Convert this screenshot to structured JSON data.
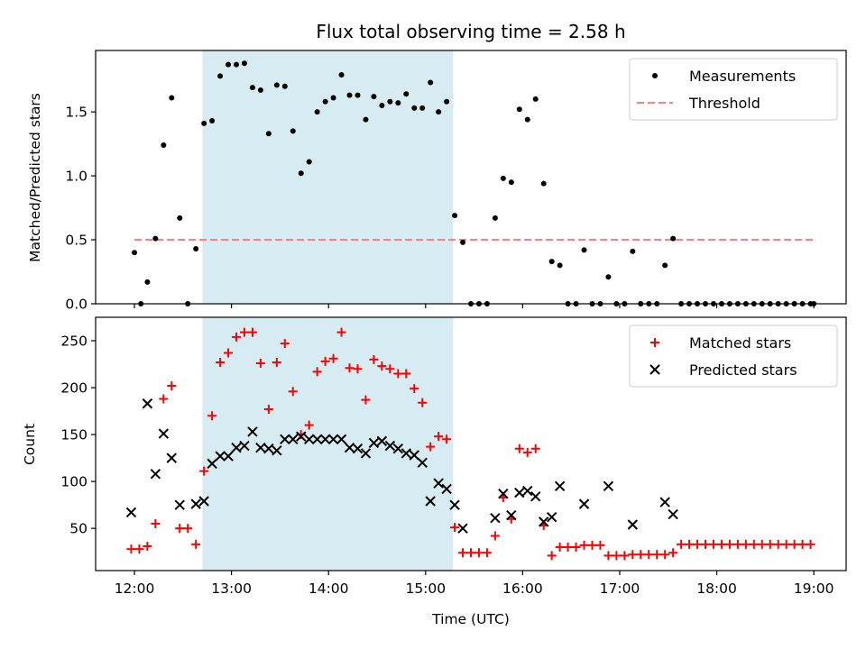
{
  "chart_data": [
    {
      "type": "scatter",
      "title": "Flux total observing time = 2.58 h",
      "xlabel": "",
      "ylabel": "Matched/Predicted stars",
      "xlim": [
        "11:36",
        "19:20"
      ],
      "ylim": [
        0,
        1.98
      ],
      "yticks": [
        0.0,
        0.5,
        1.0,
        1.5
      ],
      "ytick_labels": [
        "0.0",
        "0.5",
        "1.0",
        "1.5"
      ],
      "xticks": [
        "12:00",
        "13:00",
        "14:00",
        "15:00",
        "16:00",
        "17:00",
        "18:00",
        "19:00"
      ],
      "show_xtick_labels": false,
      "highlight_span": {
        "start": "12:42",
        "end": "15:17",
        "color": "#add8e6"
      },
      "legend_position": "top-right",
      "threshold": {
        "name": "Threshold",
        "value": 0.5,
        "x_start": "12:00",
        "x_end": "19:00",
        "color": "#ff7f7f",
        "style": "dashed"
      },
      "series": [
        {
          "name": "Measurements",
          "marker": "dot",
          "color": "#000000",
          "x": [
            "12:00",
            "12:04",
            "12:08",
            "12:13",
            "12:18",
            "12:23",
            "12:28",
            "12:33",
            "12:38",
            "12:43",
            "12:48",
            "12:53",
            "12:58",
            "13:03",
            "13:08",
            "13:13",
            "13:18",
            "13:23",
            "13:28",
            "13:33",
            "13:38",
            "13:43",
            "13:48",
            "13:53",
            "13:58",
            "14:03",
            "14:08",
            "14:13",
            "14:18",
            "14:23",
            "14:28",
            "14:33",
            "14:38",
            "14:43",
            "14:48",
            "14:53",
            "14:58",
            "15:03",
            "15:08",
            "15:13",
            "15:18",
            "15:23",
            "15:28",
            "15:33",
            "15:38",
            "15:43",
            "15:48",
            "15:53",
            "15:58",
            "16:03",
            "16:08",
            "16:13",
            "16:18",
            "16:23",
            "16:28",
            "16:33",
            "16:38",
            "16:43",
            "16:48",
            "16:53",
            "16:58",
            "17:03",
            "17:08",
            "17:13",
            "17:18",
            "17:23",
            "17:28",
            "17:33",
            "17:38",
            "17:43",
            "17:48",
            "17:53",
            "17:58",
            "18:03",
            "18:08",
            "18:13",
            "18:18",
            "18:23",
            "18:28",
            "18:33",
            "18:38",
            "18:43",
            "18:48",
            "18:53",
            "18:58",
            "19:00"
          ],
          "y": [
            0.4,
            0.0,
            0.17,
            0.51,
            1.24,
            1.61,
            0.67,
            0.0,
            0.43,
            1.41,
            1.43,
            1.78,
            1.87,
            1.87,
            1.88,
            1.69,
            1.67,
            1.33,
            1.71,
            1.7,
            1.35,
            1.02,
            1.11,
            1.5,
            1.58,
            1.61,
            1.79,
            1.63,
            1.63,
            1.44,
            1.62,
            1.55,
            1.58,
            1.57,
            1.64,
            1.53,
            1.53,
            1.73,
            1.5,
            1.58,
            0.69,
            0.48,
            0.0,
            0.0,
            0.0,
            0.67,
            0.98,
            0.95,
            1.52,
            1.44,
            1.6,
            0.94,
            0.33,
            0.3,
            0.0,
            0.0,
            0.42,
            0.0,
            0.0,
            0.21,
            0.0,
            0.0,
            0.41,
            0.0,
            0.0,
            0.0,
            0.3,
            0.51,
            0.0,
            0.0,
            0.0,
            0.0,
            0.0,
            0.0,
            0.0,
            0.0,
            0.0,
            0.0,
            0.0,
            0.0,
            0.0,
            0.0,
            0.0,
            0.0,
            0.0,
            0.0
          ]
        }
      ]
    },
    {
      "type": "scatter",
      "title": "",
      "xlabel": "Time (UTC)",
      "ylabel": "Count",
      "xlim": [
        "11:36",
        "19:20"
      ],
      "ylim": [
        5,
        275
      ],
      "yticks": [
        50,
        100,
        150,
        200,
        250
      ],
      "ytick_labels": [
        "50",
        "100",
        "150",
        "200",
        "250"
      ],
      "xticks": [
        "12:00",
        "13:00",
        "14:00",
        "15:00",
        "16:00",
        "17:00",
        "18:00",
        "19:00"
      ],
      "show_xtick_labels": true,
      "highlight_span": {
        "start": "12:42",
        "end": "15:17",
        "color": "#add8e6"
      },
      "legend_position": "top-right",
      "series": [
        {
          "name": "Matched stars",
          "marker": "plus",
          "color": "#ff0000",
          "x": [
            "11:58",
            "12:03",
            "12:08",
            "12:13",
            "12:18",
            "12:23",
            "12:28",
            "12:33",
            "12:38",
            "12:43",
            "12:48",
            "12:53",
            "12:58",
            "13:03",
            "13:08",
            "13:13",
            "13:18",
            "13:23",
            "13:28",
            "13:33",
            "13:38",
            "13:43",
            "13:48",
            "13:53",
            "13:58",
            "14:03",
            "14:08",
            "14:13",
            "14:18",
            "14:23",
            "14:28",
            "14:33",
            "14:38",
            "14:43",
            "14:48",
            "14:53",
            "14:58",
            "15:03",
            "15:08",
            "15:13",
            "15:18",
            "15:23",
            "15:28",
            "15:33",
            "15:38",
            "15:43",
            "15:48",
            "15:53",
            "15:58",
            "16:03",
            "16:08",
            "16:13",
            "16:18",
            "16:23",
            "16:28",
            "16:33",
            "16:38",
            "16:43",
            "16:48",
            "16:53",
            "16:58",
            "17:03",
            "17:08",
            "17:13",
            "17:18",
            "17:23",
            "17:28",
            "17:33",
            "17:38",
            "17:43",
            "17:48",
            "17:53",
            "17:58",
            "18:03",
            "18:08",
            "18:13",
            "18:18",
            "18:23",
            "18:28",
            "18:33",
            "18:38",
            "18:43",
            "18:48",
            "18:53",
            "18:58"
          ],
          "y": [
            28,
            28,
            31,
            55,
            188,
            202,
            50,
            50,
            33,
            111,
            170,
            227,
            237,
            254,
            259,
            259,
            226,
            177,
            227,
            247,
            196,
            150,
            160,
            217,
            228,
            231,
            259,
            221,
            220,
            187,
            230,
            223,
            220,
            215,
            215,
            199,
            184,
            137,
            148,
            145,
            51,
            24,
            24,
            24,
            24,
            42,
            83,
            60,
            135,
            131,
            135,
            53,
            21,
            30,
            30,
            30,
            32,
            32,
            32,
            21,
            21,
            21,
            22,
            22,
            22,
            22,
            22,
            24,
            33,
            33,
            33,
            33,
            33,
            33,
            33,
            33,
            33,
            33,
            33,
            33,
            33,
            33,
            33,
            33,
            33
          ]
        },
        {
          "name": "Predicted stars",
          "marker": "x",
          "color": "#000000",
          "x": [
            "11:58",
            "12:08",
            "12:13",
            "12:18",
            "12:23",
            "12:28",
            "12:38",
            "12:43",
            "12:48",
            "12:53",
            "12:58",
            "13:03",
            "13:08",
            "13:13",
            "13:18",
            "13:23",
            "13:28",
            "13:33",
            "13:38",
            "13:43",
            "13:48",
            "13:53",
            "13:58",
            "14:03",
            "14:08",
            "14:13",
            "14:18",
            "14:23",
            "14:28",
            "14:33",
            "14:38",
            "14:43",
            "14:48",
            "14:53",
            "14:58",
            "15:03",
            "15:08",
            "15:13",
            "15:18",
            "15:23",
            "15:43",
            "15:48",
            "15:53",
            "15:58",
            "16:03",
            "16:08",
            "16:13",
            "16:18",
            "16:23",
            "16:38",
            "16:53",
            "17:08",
            "17:28",
            "17:33"
          ],
          "y": [
            67,
            183,
            108,
            151,
            125,
            75,
            76,
            79,
            119,
            127,
            127,
            136,
            138,
            153,
            136,
            135,
            133,
            145,
            145,
            148,
            145,
            145,
            145,
            145,
            145,
            136,
            135,
            130,
            141,
            143,
            138,
            135,
            130,
            128,
            120,
            79,
            98,
            92,
            75,
            50,
            61,
            87,
            64,
            88,
            90,
            84,
            57,
            62,
            95,
            76,
            95,
            54,
            78,
            65
          ]
        }
      ]
    }
  ]
}
